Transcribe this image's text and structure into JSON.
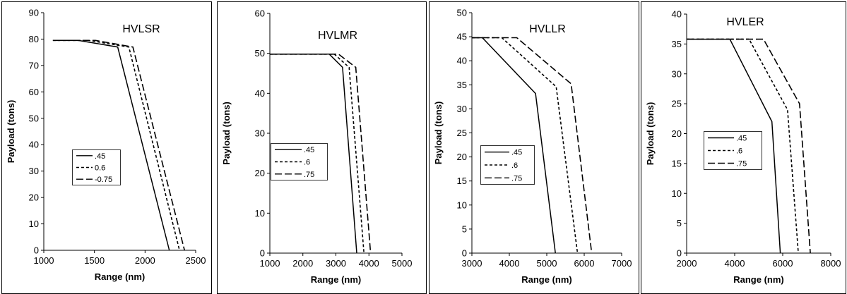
{
  "chart_data": [
    {
      "type": "line",
      "title": "HVLSR",
      "xlabel": "Range (nm)",
      "ylabel": "Payload (tons)",
      "xlim": [
        1000,
        2500
      ],
      "ylim": [
        0,
        90
      ],
      "xticks": [
        "1000",
        "1500",
        "2000",
        "2500"
      ],
      "yticks": [
        "0",
        "10",
        "20",
        "30",
        "40",
        "50",
        "60",
        "70",
        "80",
        "90"
      ],
      "series": [
        {
          "name": ".45",
          "dash": "solid",
          "x": [
            1090,
            1340,
            1730,
            2240
          ],
          "y": [
            79.5,
            79.5,
            77,
            0
          ]
        },
        {
          "name": "0.6",
          "dash": "short",
          "x": [
            1090,
            1440,
            1840,
            2340
          ],
          "y": [
            79.5,
            79.5,
            77,
            0
          ]
        },
        {
          "name": "-0.75",
          "dash": "long",
          "x": [
            1090,
            1510,
            1880,
            2390
          ],
          "y": [
            79.5,
            79.5,
            77,
            0
          ]
        }
      ]
    },
    {
      "type": "line",
      "title": "HVLMR",
      "xlabel": "Range (nm)",
      "ylabel": "Payload (tons)",
      "xlim": [
        1000,
        5000
      ],
      "ylim": [
        0,
        60
      ],
      "xticks": [
        "1000",
        "2000",
        "3000",
        "4000",
        "5000"
      ],
      "yticks": [
        "0",
        "10",
        "20",
        "30",
        "40",
        "50",
        "60"
      ],
      "series": [
        {
          "name": ".45",
          "dash": "solid",
          "x": [
            1000,
            2800,
            3200,
            3630
          ],
          "y": [
            49.8,
            49.8,
            46.5,
            0
          ]
        },
        {
          "name": ".6",
          "dash": "short",
          "x": [
            1000,
            2950,
            3400,
            3850
          ],
          "y": [
            49.8,
            49.8,
            46.5,
            0
          ]
        },
        {
          "name": ".75",
          "dash": "long",
          "x": [
            1000,
            3080,
            3600,
            4050
          ],
          "y": [
            49.8,
            49.8,
            46.5,
            0
          ]
        }
      ]
    },
    {
      "type": "line",
      "title": "HVLLR",
      "xlabel": "Range (nm)",
      "ylabel": "Payload (tons)",
      "xlim": [
        3000,
        7000
      ],
      "ylim": [
        0,
        50
      ],
      "xticks": [
        "3000",
        "4000",
        "5000",
        "6000",
        "7000"
      ],
      "yticks": [
        "0",
        "5",
        "10",
        "15",
        "20",
        "25",
        "30",
        "35",
        "40",
        "45",
        "50"
      ],
      "series": [
        {
          "name": ".45",
          "dash": "solid",
          "x": [
            3000,
            3280,
            4700,
            5230
          ],
          "y": [
            44.8,
            44.8,
            33.2,
            0
          ]
        },
        {
          "name": ".6",
          "dash": "short",
          "x": [
            3000,
            3800,
            5250,
            5820
          ],
          "y": [
            44.8,
            44.8,
            34.6,
            0
          ]
        },
        {
          "name": ".75",
          "dash": "long",
          "x": [
            3000,
            4200,
            5650,
            6200
          ],
          "y": [
            44.8,
            44.8,
            35.2,
            0
          ]
        }
      ]
    },
    {
      "type": "line",
      "title": "HVLER",
      "xlabel": "Range (nm)",
      "ylabel": "Payload (tons)",
      "xlim": [
        2000,
        8000
      ],
      "ylim": [
        0,
        40
      ],
      "xticks": [
        "2000",
        "4000",
        "6000",
        "8000"
      ],
      "yticks": [
        "0",
        "5",
        "10",
        "15",
        "20",
        "25",
        "30",
        "35",
        "40"
      ],
      "series": [
        {
          "name": ".45",
          "dash": "solid",
          "x": [
            2000,
            3800,
            5550,
            5900
          ],
          "y": [
            35.8,
            35.8,
            22,
            0
          ]
        },
        {
          "name": ".6",
          "dash": "short",
          "x": [
            2000,
            4600,
            6200,
            6650
          ],
          "y": [
            35.8,
            35.8,
            24,
            0
          ]
        },
        {
          "name": ".75",
          "dash": "long",
          "x": [
            2000,
            5200,
            6700,
            7150
          ],
          "y": [
            35.8,
            35.8,
            25,
            0
          ]
        }
      ]
    }
  ]
}
